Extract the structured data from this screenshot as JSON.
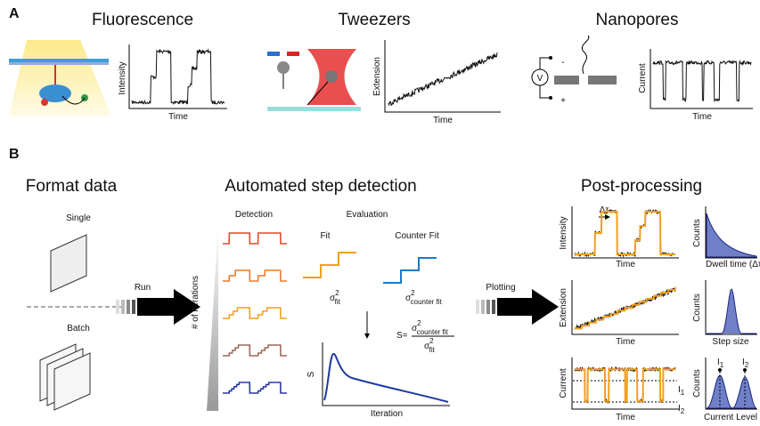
{
  "panel_a": {
    "label": "A",
    "fluorescence": {
      "title": "Fluorescence",
      "y_label": "Intensity",
      "x_label": "Time"
    },
    "tweezers": {
      "title": "Tweezers",
      "y_label": "Extension",
      "x_label": "Time"
    },
    "nanopores": {
      "title": "Nanopores",
      "y_label": "Current",
      "x_label": "Time",
      "voltage": "V",
      "minus": "-",
      "plus": "+"
    }
  },
  "panel_b": {
    "label": "B",
    "format_data": {
      "title": "Format data",
      "single": "Single",
      "batch": "Batch"
    },
    "run": "Run",
    "step_detection": {
      "title": "Automated step detection",
      "detection": "Detection",
      "evaluation": "Evaluation",
      "iterations_label": "# of iterations",
      "fit": "Fit",
      "counter_fit": "Counter Fit",
      "sigma_fit": {
        "symbol": "σ",
        "sup": "2",
        "sub": "fit"
      },
      "sigma_counter_fit": {
        "symbol": "σ",
        "sup": "2",
        "sub": "counter fit"
      },
      "score": {
        "lhs": "S=",
        "numerator": {
          "symbol": "σ",
          "sup": "2",
          "sub": "counter fit"
        },
        "denominator": {
          "symbol": "σ",
          "sup": "2",
          "sub": "fit"
        }
      },
      "plot": {
        "y_label": "S",
        "x_label": "Iteration"
      }
    },
    "plotting": "Plotting",
    "post_processing": {
      "title": "Post-processing",
      "intensity_plot": {
        "y_label": "Intensity",
        "x_label": "Time",
        "dwell_marker": "Δτ"
      },
      "dwell_hist": {
        "y_label": "Counts",
        "x_label": "Dwell time (Δτ"
      },
      "extension_plot": {
        "y_label": "Extension",
        "x_label": "Time"
      },
      "step_hist": {
        "y_label": "Counts",
        "x_label": "Step size"
      },
      "current_plot": {
        "y_label": "Current",
        "x_label": "Time",
        "level_1": {
          "symbol": "I",
          "sub": "1"
        },
        "level_2": {
          "symbol": "I",
          "sub": "2"
        }
      },
      "level_hist": {
        "y_label": "Counts",
        "x_label": "Current Level",
        "peak_1": {
          "symbol": "I",
          "sub": "1"
        },
        "peak_2": {
          "symbol": "I",
          "sub": "2"
        }
      }
    }
  }
}
